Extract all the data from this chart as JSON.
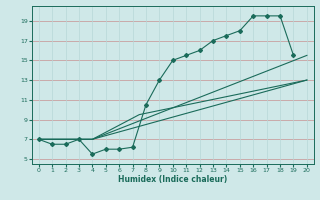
{
  "xlabel": "Humidex (Indice chaleur)",
  "xlim": [
    -0.5,
    20.5
  ],
  "ylim": [
    4.5,
    20.5
  ],
  "yticks": [
    5,
    7,
    9,
    11,
    13,
    15,
    17,
    19
  ],
  "xticks": [
    0,
    1,
    2,
    3,
    4,
    5,
    6,
    7,
    8,
    9,
    10,
    11,
    12,
    13,
    14,
    15,
    16,
    17,
    18,
    19,
    20
  ],
  "background_color": "#cfe8e8",
  "grid_color_h": "#c8a0a0",
  "grid_color_v": "#b8d8d8",
  "line_color": "#1a6b5a",
  "series1_x": [
    0,
    1,
    2,
    3,
    4,
    5,
    6,
    7,
    8,
    9,
    10,
    11,
    12,
    13,
    14,
    15,
    16,
    17,
    18,
    19
  ],
  "series1_y": [
    7,
    6.5,
    6.5,
    7,
    5.5,
    6,
    6,
    6.2,
    10.5,
    13,
    15,
    15.5,
    16,
    17,
    17.5,
    18,
    19.5,
    19.5,
    19.5,
    15.5
  ],
  "series2_x": [
    0,
    4,
    20
  ],
  "series2_y": [
    7,
    7,
    13
  ],
  "series3_x": [
    0,
    4,
    20
  ],
  "series3_y": [
    7,
    7,
    15.5
  ],
  "series4_x": [
    0,
    4,
    7.5,
    20
  ],
  "series4_y": [
    7,
    7,
    9.5,
    13
  ]
}
